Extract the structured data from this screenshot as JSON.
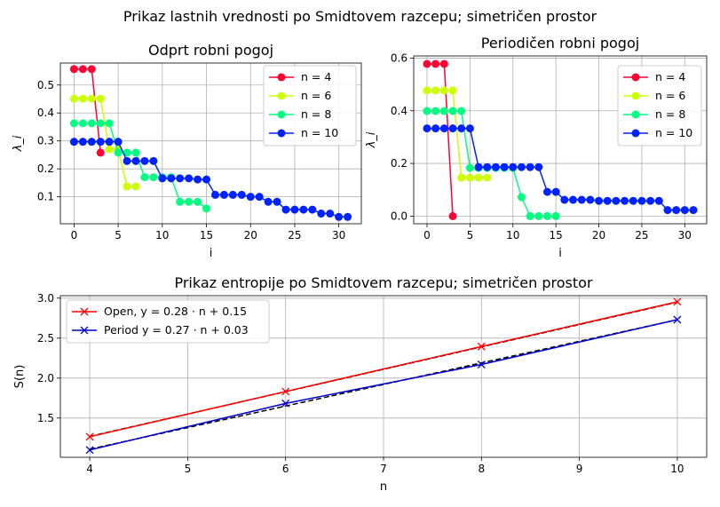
{
  "figure": {
    "suptitle": "Prikaz lastnih vrednosti po Smidtovem razcepu; simetričen prostor"
  },
  "chart_data": [
    {
      "type": "line",
      "title": "Odprt robni pogoj",
      "xlabel": "i",
      "ylabel": "λ_i",
      "xlim": [
        -1.55,
        32.55
      ],
      "ylim": [
        0.0035,
        0.5787
      ],
      "xticks": [
        0,
        5,
        10,
        15,
        20,
        25,
        30
      ],
      "yticks": [
        0.1,
        0.2,
        0.3,
        0.4,
        0.5
      ],
      "ytick_labels": [
        "0.1",
        "0.2",
        "0.3",
        "0.4",
        "0.5"
      ],
      "grid": true,
      "legend_position": "top-right",
      "series": [
        {
          "name": "n = 4",
          "color": "#ff0033",
          "values": [
            0.557,
            0.557,
            0.557,
            0.258
          ]
        },
        {
          "name": "n = 6",
          "color": "#ccff00",
          "values": [
            0.451,
            0.451,
            0.451,
            0.451,
            0.27,
            0.27,
            0.137,
            0.137
          ]
        },
        {
          "name": "n = 8",
          "color": "#00ff80",
          "values": [
            0.363,
            0.363,
            0.363,
            0.363,
            0.363,
            0.258,
            0.258,
            0.258,
            0.17,
            0.17,
            0.17,
            0.17,
            0.082,
            0.082,
            0.082,
            0.058
          ]
        },
        {
          "name": "n = 10",
          "color": "#0022ff",
          "values": [
            0.297,
            0.297,
            0.297,
            0.297,
            0.297,
            0.297,
            0.228,
            0.228,
            0.228,
            0.228,
            0.166,
            0.166,
            0.166,
            0.166,
            0.162,
            0.162,
            0.107,
            0.107,
            0.107,
            0.107,
            0.1,
            0.1,
            0.082,
            0.082,
            0.054,
            0.054,
            0.054,
            0.054,
            0.04,
            0.04,
            0.028,
            0.028
          ]
        }
      ]
    },
    {
      "type": "line",
      "title": "Periodičen robni pogoj",
      "xlabel": "i",
      "ylabel": "λ_i",
      "xlim": [
        -1.55,
        32.55
      ],
      "ylim": [
        -0.029,
        0.6082
      ],
      "xticks": [
        0,
        5,
        10,
        15,
        20,
        25,
        30
      ],
      "yticks": [
        0.0,
        0.2,
        0.4,
        0.6
      ],
      "ytick_labels": [
        "0.0",
        "0.2",
        "0.4",
        "0.6"
      ],
      "grid": true,
      "legend_position": "top-right",
      "series": [
        {
          "name": "n = 4",
          "color": "#ff0033",
          "values": [
            0.578,
            0.578,
            0.578,
            0.0
          ]
        },
        {
          "name": "n = 6",
          "color": "#ccff00",
          "values": [
            0.477,
            0.477,
            0.477,
            0.477,
            0.146,
            0.146,
            0.146,
            0.146
          ]
        },
        {
          "name": "n = 8",
          "color": "#00ff80",
          "values": [
            0.399,
            0.399,
            0.399,
            0.399,
            0.399,
            0.183,
            0.183,
            0.183,
            0.183,
            0.183,
            0.183,
            0.072,
            0.0,
            0.0,
            0.0,
            0.0
          ]
        },
        {
          "name": "n = 10",
          "color": "#0022ff",
          "values": [
            0.333,
            0.333,
            0.333,
            0.333,
            0.333,
            0.333,
            0.186,
            0.186,
            0.186,
            0.186,
            0.186,
            0.186,
            0.186,
            0.186,
            0.092,
            0.092,
            0.062,
            0.062,
            0.062,
            0.062,
            0.058,
            0.058,
            0.058,
            0.058,
            0.058,
            0.058,
            0.058,
            0.058,
            0.023,
            0.023,
            0.023,
            0.023
          ]
        }
      ]
    },
    {
      "type": "line",
      "title": "Prikaz entropije po Smidtovem razcepu; simetričen prostor",
      "xlabel": "n",
      "ylabel": "S(n)",
      "xlim": [
        3.7,
        10.3
      ],
      "ylim": [
        1.009,
        3.031
      ],
      "xticks": [
        4,
        5,
        6,
        7,
        8,
        9,
        10
      ],
      "yticks": [
        1.5,
        2.0,
        2.5,
        3.0
      ],
      "ytick_labels": [
        "1.5",
        "2.0",
        "2.5",
        "3.0"
      ],
      "grid": true,
      "legend_position": "top-left",
      "x": [
        4,
        6,
        8,
        10
      ],
      "series": [
        {
          "name": "Open, y = 0.28 · n + 0.15",
          "color": "#ff0000",
          "values": [
            1.266,
            1.832,
            2.395,
            2.955
          ],
          "fit": [
            1.27,
            1.83,
            2.39,
            2.95
          ]
        },
        {
          "name": "Period y = 0.27 · n + 0.03",
          "color": "#0000cc",
          "values": [
            1.1,
            1.683,
            2.17,
            2.731
          ],
          "fit": [
            1.11,
            1.65,
            2.19,
            2.73
          ]
        }
      ]
    }
  ]
}
